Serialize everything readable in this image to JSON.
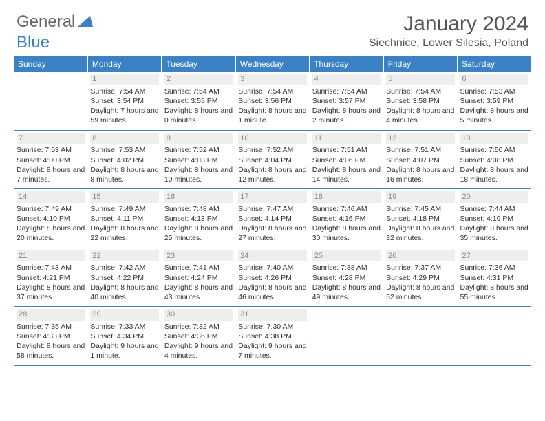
{
  "brand": {
    "part1": "General",
    "part2": "Blue"
  },
  "title": "January 2024",
  "location": "Siechnice, Lower Silesia, Poland",
  "colors": {
    "header_bg": "#3b82c4",
    "header_text": "#ffffff",
    "daynum_bg": "#eeeeee",
    "daynum_color": "#888888",
    "cell_border": "#3b82c4",
    "body_text": "#333333",
    "logo_gray": "#666666",
    "logo_blue": "#3b82c4",
    "title_color": "#555555",
    "background": "#ffffff"
  },
  "typography": {
    "title_fontsize": 30,
    "location_fontsize": 16,
    "header_fontsize": 12,
    "cell_fontsize": 10.5,
    "daynum_fontsize": 11,
    "logo_fontsize": 24
  },
  "day_headers": [
    "Sunday",
    "Monday",
    "Tuesday",
    "Wednesday",
    "Thursday",
    "Friday",
    "Saturday"
  ],
  "weeks": [
    [
      {
        "blank": true
      },
      {
        "n": "1",
        "sunrise": "Sunrise: 7:54 AM",
        "sunset": "Sunset: 3:54 PM",
        "daylight": "Daylight: 7 hours and 59 minutes."
      },
      {
        "n": "2",
        "sunrise": "Sunrise: 7:54 AM",
        "sunset": "Sunset: 3:55 PM",
        "daylight": "Daylight: 8 hours and 0 minutes."
      },
      {
        "n": "3",
        "sunrise": "Sunrise: 7:54 AM",
        "sunset": "Sunset: 3:56 PM",
        "daylight": "Daylight: 8 hours and 1 minute."
      },
      {
        "n": "4",
        "sunrise": "Sunrise: 7:54 AM",
        "sunset": "Sunset: 3:57 PM",
        "daylight": "Daylight: 8 hours and 2 minutes."
      },
      {
        "n": "5",
        "sunrise": "Sunrise: 7:54 AM",
        "sunset": "Sunset: 3:58 PM",
        "daylight": "Daylight: 8 hours and 4 minutes."
      },
      {
        "n": "6",
        "sunrise": "Sunrise: 7:53 AM",
        "sunset": "Sunset: 3:59 PM",
        "daylight": "Daylight: 8 hours and 5 minutes."
      }
    ],
    [
      {
        "n": "7",
        "sunrise": "Sunrise: 7:53 AM",
        "sunset": "Sunset: 4:00 PM",
        "daylight": "Daylight: 8 hours and 7 minutes."
      },
      {
        "n": "8",
        "sunrise": "Sunrise: 7:53 AM",
        "sunset": "Sunset: 4:02 PM",
        "daylight": "Daylight: 8 hours and 8 minutes."
      },
      {
        "n": "9",
        "sunrise": "Sunrise: 7:52 AM",
        "sunset": "Sunset: 4:03 PM",
        "daylight": "Daylight: 8 hours and 10 minutes."
      },
      {
        "n": "10",
        "sunrise": "Sunrise: 7:52 AM",
        "sunset": "Sunset: 4:04 PM",
        "daylight": "Daylight: 8 hours and 12 minutes."
      },
      {
        "n": "11",
        "sunrise": "Sunrise: 7:51 AM",
        "sunset": "Sunset: 4:06 PM",
        "daylight": "Daylight: 8 hours and 14 minutes."
      },
      {
        "n": "12",
        "sunrise": "Sunrise: 7:51 AM",
        "sunset": "Sunset: 4:07 PM",
        "daylight": "Daylight: 8 hours and 16 minutes."
      },
      {
        "n": "13",
        "sunrise": "Sunrise: 7:50 AM",
        "sunset": "Sunset: 4:08 PM",
        "daylight": "Daylight: 8 hours and 18 minutes."
      }
    ],
    [
      {
        "n": "14",
        "sunrise": "Sunrise: 7:49 AM",
        "sunset": "Sunset: 4:10 PM",
        "daylight": "Daylight: 8 hours and 20 minutes."
      },
      {
        "n": "15",
        "sunrise": "Sunrise: 7:49 AM",
        "sunset": "Sunset: 4:11 PM",
        "daylight": "Daylight: 8 hours and 22 minutes."
      },
      {
        "n": "16",
        "sunrise": "Sunrise: 7:48 AM",
        "sunset": "Sunset: 4:13 PM",
        "daylight": "Daylight: 8 hours and 25 minutes."
      },
      {
        "n": "17",
        "sunrise": "Sunrise: 7:47 AM",
        "sunset": "Sunset: 4:14 PM",
        "daylight": "Daylight: 8 hours and 27 minutes."
      },
      {
        "n": "18",
        "sunrise": "Sunrise: 7:46 AM",
        "sunset": "Sunset: 4:16 PM",
        "daylight": "Daylight: 8 hours and 30 minutes."
      },
      {
        "n": "19",
        "sunrise": "Sunrise: 7:45 AM",
        "sunset": "Sunset: 4:18 PM",
        "daylight": "Daylight: 8 hours and 32 minutes."
      },
      {
        "n": "20",
        "sunrise": "Sunrise: 7:44 AM",
        "sunset": "Sunset: 4:19 PM",
        "daylight": "Daylight: 8 hours and 35 minutes."
      }
    ],
    [
      {
        "n": "21",
        "sunrise": "Sunrise: 7:43 AM",
        "sunset": "Sunset: 4:21 PM",
        "daylight": "Daylight: 8 hours and 37 minutes."
      },
      {
        "n": "22",
        "sunrise": "Sunrise: 7:42 AM",
        "sunset": "Sunset: 4:22 PM",
        "daylight": "Daylight: 8 hours and 40 minutes."
      },
      {
        "n": "23",
        "sunrise": "Sunrise: 7:41 AM",
        "sunset": "Sunset: 4:24 PM",
        "daylight": "Daylight: 8 hours and 43 minutes."
      },
      {
        "n": "24",
        "sunrise": "Sunrise: 7:40 AM",
        "sunset": "Sunset: 4:26 PM",
        "daylight": "Daylight: 8 hours and 46 minutes."
      },
      {
        "n": "25",
        "sunrise": "Sunrise: 7:38 AM",
        "sunset": "Sunset: 4:28 PM",
        "daylight": "Daylight: 8 hours and 49 minutes."
      },
      {
        "n": "26",
        "sunrise": "Sunrise: 7:37 AM",
        "sunset": "Sunset: 4:29 PM",
        "daylight": "Daylight: 8 hours and 52 minutes."
      },
      {
        "n": "27",
        "sunrise": "Sunrise: 7:36 AM",
        "sunset": "Sunset: 4:31 PM",
        "daylight": "Daylight: 8 hours and 55 minutes."
      }
    ],
    [
      {
        "n": "28",
        "sunrise": "Sunrise: 7:35 AM",
        "sunset": "Sunset: 4:33 PM",
        "daylight": "Daylight: 8 hours and 58 minutes."
      },
      {
        "n": "29",
        "sunrise": "Sunrise: 7:33 AM",
        "sunset": "Sunset: 4:34 PM",
        "daylight": "Daylight: 9 hours and 1 minute."
      },
      {
        "n": "30",
        "sunrise": "Sunrise: 7:32 AM",
        "sunset": "Sunset: 4:36 PM",
        "daylight": "Daylight: 9 hours and 4 minutes."
      },
      {
        "n": "31",
        "sunrise": "Sunrise: 7:30 AM",
        "sunset": "Sunset: 4:38 PM",
        "daylight": "Daylight: 9 hours and 7 minutes."
      },
      {
        "blank": true
      },
      {
        "blank": true
      },
      {
        "blank": true
      }
    ]
  ]
}
